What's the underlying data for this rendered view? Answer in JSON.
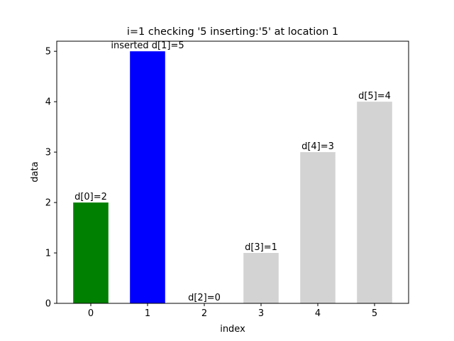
{
  "chart_data": {
    "type": "bar",
    "title": "i=1 checking '5  inserting:'5' at location 1",
    "xlabel": "index",
    "ylabel": "data",
    "categories": [
      "0",
      "1",
      "2",
      "3",
      "4",
      "5"
    ],
    "values": [
      2,
      5,
      0,
      1,
      3,
      4
    ],
    "bar_labels": [
      "d[0]=2",
      "inserted d[1]=5",
      "d[2]=0",
      "d[3]=1",
      "d[4]=3",
      "d[5]=4"
    ],
    "bar_colors": [
      "#008000",
      "#0000ff",
      "#d3d3d3",
      "#d3d3d3",
      "#d3d3d3",
      "#d3d3d3"
    ],
    "yticks": [
      0,
      1,
      2,
      3,
      4,
      5
    ],
    "xlim": [
      -0.6,
      5.6
    ],
    "ylim": [
      0,
      5.2
    ],
    "grid": false,
    "legend": "none"
  }
}
